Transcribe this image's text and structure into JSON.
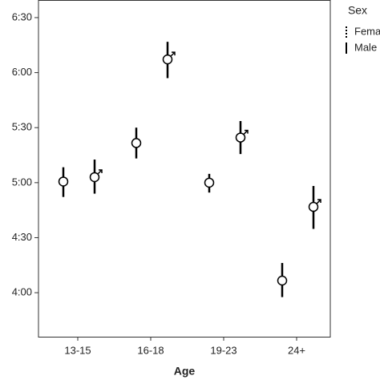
{
  "chart_data": {
    "type": "errorbar",
    "x_label": "Age",
    "categories": [
      "13-15",
      "16-18",
      "19-23",
      "24+"
    ],
    "legend_title": "Sex",
    "series": [
      {
        "name": "Female",
        "color": "#000000",
        "values": [
          5.01,
          5.36,
          5.0,
          4.11
        ],
        "lower": [
          4.87,
          5.22,
          4.91,
          3.96
        ],
        "upper": [
          5.14,
          5.5,
          5.08,
          4.27
        ]
      },
      {
        "name": "Male",
        "color": "#000000",
        "values": [
          5.05,
          6.12,
          5.41,
          4.78
        ],
        "lower": [
          4.9,
          5.95,
          5.26,
          4.58
        ],
        "upper": [
          5.21,
          6.28,
          5.56,
          4.97
        ]
      }
    ],
    "ylim": [
      3.6,
      6.66
    ],
    "yticks": [
      {
        "value": 4,
        "label": "4:00"
      },
      {
        "value": 4.5,
        "label": "4:30"
      },
      {
        "value": 5,
        "label": "5:00"
      },
      {
        "value": 5.5,
        "label": "5:30"
      },
      {
        "value": 6,
        "label": "6:00"
      },
      {
        "value": 6.5,
        "label": "6:30"
      }
    ]
  }
}
